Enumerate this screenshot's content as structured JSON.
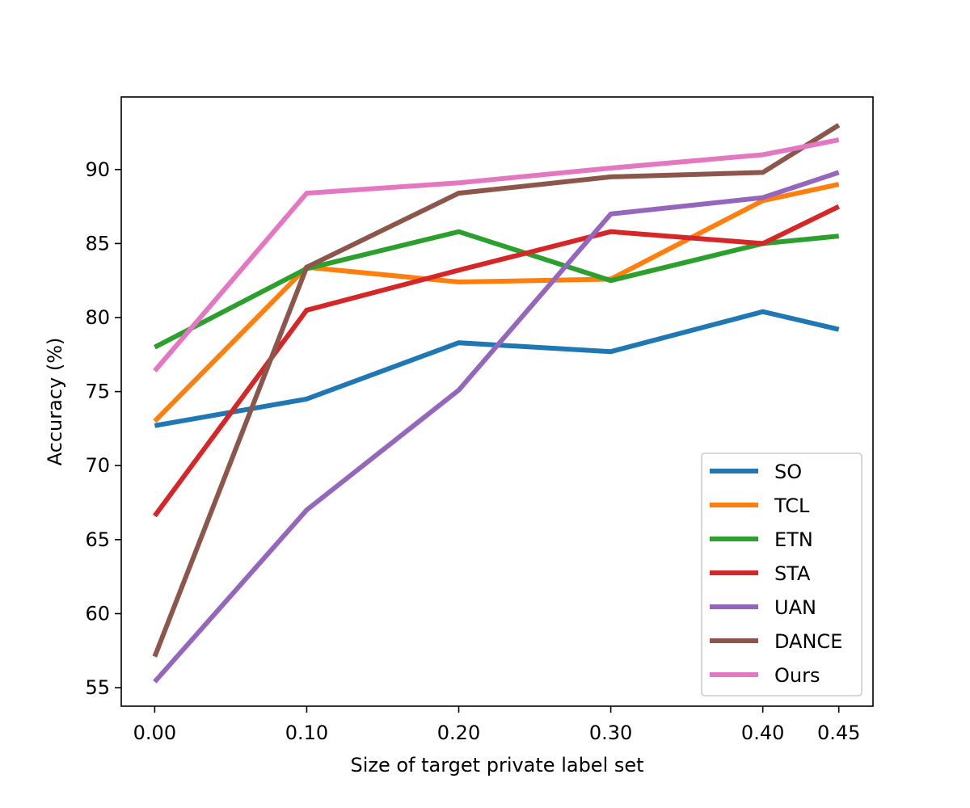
{
  "chart_data": {
    "type": "line",
    "title": "",
    "xlabel": "Size of target private label set",
    "ylabel": "Accuracy (%)",
    "x": [
      0.0,
      0.1,
      0.2,
      0.3,
      0.4,
      0.45
    ],
    "xticks": [
      "0.00",
      "0.10",
      "0.20",
      "0.30",
      "0.40",
      "0.45"
    ],
    "yticks": [
      55,
      60,
      65,
      70,
      75,
      80,
      85,
      90
    ],
    "xlim": [
      -0.022,
      0.4725
    ],
    "ylim": [
      53.75,
      94.9
    ],
    "grid": false,
    "legend_position": "lower right",
    "series": [
      {
        "name": "SO",
        "color": "#1f77b4",
        "values": [
          72.7,
          74.5,
          78.3,
          77.7,
          80.4,
          79.2
        ]
      },
      {
        "name": "TCL",
        "color": "#ff7f0e",
        "values": [
          73.0,
          83.4,
          82.4,
          82.6,
          87.9,
          89.0
        ]
      },
      {
        "name": "ETN",
        "color": "#2ca02c",
        "values": [
          78.0,
          83.3,
          85.8,
          82.5,
          85.0,
          85.5
        ]
      },
      {
        "name": "STA",
        "color": "#d62728",
        "values": [
          66.6,
          80.5,
          83.2,
          85.8,
          85.0,
          87.5
        ]
      },
      {
        "name": "UAN",
        "color": "#9467bd",
        "values": [
          55.4,
          67.0,
          75.1,
          87.0,
          88.1,
          89.8
        ]
      },
      {
        "name": "DANCE",
        "color": "#8c564b",
        "values": [
          57.1,
          83.4,
          88.4,
          89.5,
          89.8,
          93.0
        ]
      },
      {
        "name": "Ours",
        "color": "#e377c2",
        "values": [
          76.4,
          88.4,
          89.1,
          90.1,
          91.0,
          92.0
        ]
      }
    ]
  }
}
